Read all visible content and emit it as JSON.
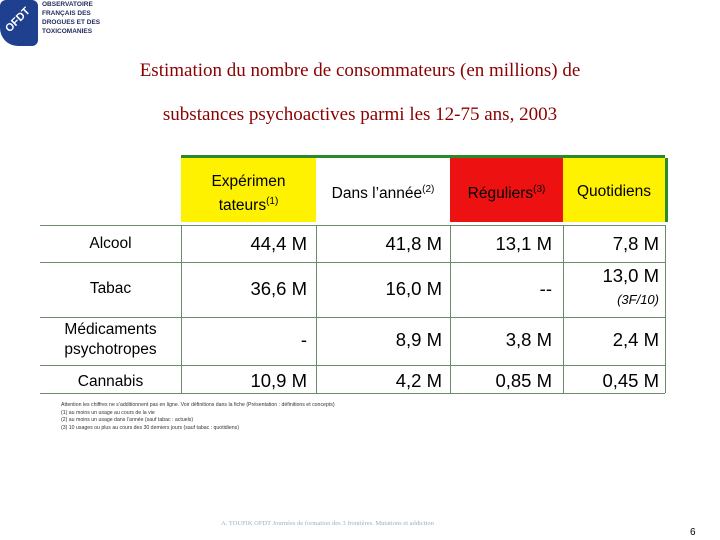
{
  "logo": {
    "badge": "OFDT",
    "lines": [
      "OBSERVATOIRE",
      "FRANÇAIS DES",
      "DROGUES ET DES",
      "TOXICOMANIES"
    ]
  },
  "title": {
    "line1": "Estimation du nombre de consommateurs (en millions) de",
    "line2": "substances psychoactives parmi les 12-75 ans, 2003"
  },
  "columns": [
    {
      "label_line1": "Expérimen",
      "label_line2": "tateurs",
      "note": "(1)",
      "color": "#fff200"
    },
    {
      "label": "Dans l’année",
      "note": "(2)"
    },
    {
      "label": "Réguliers",
      "note": "(3)",
      "color": "#ee1111"
    },
    {
      "label": "Quotidiens",
      "color": "#fff200"
    }
  ],
  "rows": [
    {
      "label": "Alcool",
      "values": [
        "44,4 M",
        "41,8 M",
        "13,1 M",
        "7,8 M"
      ]
    },
    {
      "label": "Tabac",
      "values": [
        "36,6 M",
        "16,0 M",
        "--",
        "13,0 M"
      ],
      "extra": "(3F/10)"
    },
    {
      "label_line1": "Médicaments",
      "label_line2": "psychotropes",
      "values": [
        "-",
        "8,9 M",
        "3,8 M",
        "2,4 M"
      ]
    },
    {
      "label": "Cannabis",
      "values": [
        "10,9 M",
        "4,2 M",
        "0,85 M",
        "0,45 M"
      ]
    }
  ],
  "footnotes": [
    "Attention les chiffres ne s’additionnent pas en ligne. Voir définitions dans la fiche (Présentation : définitions et concepts)",
    "(1) au moins un usage au cours de la vie",
    "(2) au moins un usage dans l’année (sauf tabac : actuels)",
    "(3) 10 usages ou plus au cours des 30 derniers jours (sauf tabac : quotidiens)"
  ],
  "footer": "A. TOUFIK OFDT Journées de formation des 3 frontières. Mutations et addiction",
  "page_number": "6"
}
